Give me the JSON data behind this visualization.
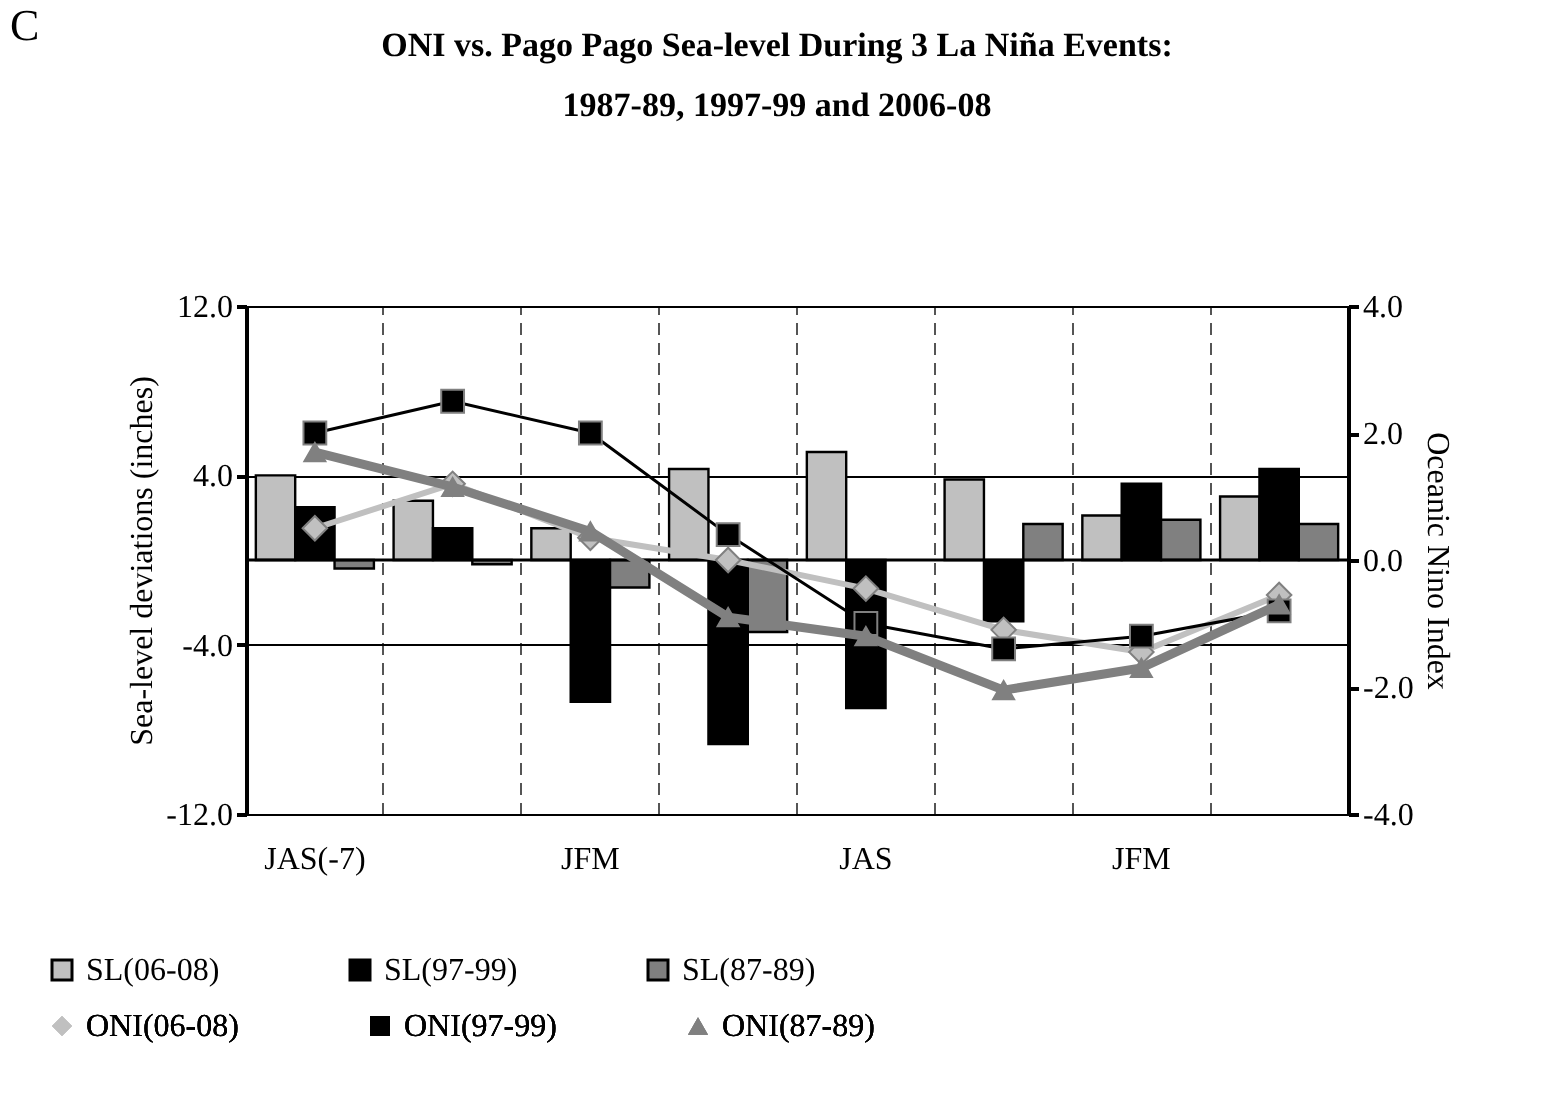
{
  "chart_data": {
    "type": "bar",
    "title": [
      "ONI vs. Pago Pago Sea-level During 3 La Niña Events:",
      "1987-89, 1997-99 and 2006-08"
    ],
    "annotations": [
      "C"
    ],
    "ylabel": "Sea-level deviations (inches)",
    "y2label": "Oceanic Nino Index",
    "categories": [
      "JAS(-7)",
      null,
      "JFM",
      null,
      "JAS",
      null,
      "JFM",
      null
    ],
    "series": [
      {
        "name": "SL(06-08)",
        "type": "bar",
        "color": "#c0c0c0",
        "values": [
          4.0,
          2.8,
          1.5,
          4.3,
          5.1,
          3.8,
          2.1,
          3.0
        ]
      },
      {
        "name": "SL(97-99)",
        "type": "bar",
        "color": "#000000",
        "values": [
          2.5,
          1.5,
          -6.7,
          -8.7,
          -7.0,
          -2.9,
          3.6,
          4.3
        ]
      },
      {
        "name": "SL(87-89)",
        "type": "bar",
        "color": "#808080",
        "values": [
          -0.4,
          -0.2,
          -1.3,
          -3.4,
          null,
          1.7,
          1.9,
          1.7
        ]
      },
      {
        "name": "ONI(06-08)",
        "type": "line",
        "axis": "y2",
        "color": "#c0c0c0",
        "marker": "diamond",
        "values": [
          0.5,
          1.2,
          0.35,
          0.0,
          -0.45,
          -1.1,
          -1.45,
          -0.55
        ]
      },
      {
        "name": "ONI(97-99)",
        "type": "line",
        "axis": "y2",
        "color": "#000000",
        "marker": "square",
        "values": [
          2.0,
          2.5,
          2.0,
          0.4,
          -1.0,
          -1.4,
          -1.2,
          -0.8
        ]
      },
      {
        "name": "ONI(87-89)",
        "type": "line",
        "axis": "y2",
        "color": "#808080",
        "marker": "triangle",
        "values": [
          1.7,
          1.15,
          0.45,
          -0.9,
          -1.2,
          -2.05,
          -1.7,
          -0.7
        ]
      }
    ],
    "ylim": [
      -12,
      12
    ],
    "yticks": [
      {
        "value": -12,
        "label": "-12.0"
      },
      {
        "value": -4,
        "label": "-4.0"
      },
      {
        "value": 4,
        "label": "4.0"
      },
      {
        "value": 12,
        "label": "12.0"
      }
    ],
    "y2lim": [
      -4,
      4
    ],
    "y2ticks": [
      {
        "value": -4,
        "label": "-4.0"
      },
      {
        "value": -2,
        "label": "-2.0"
      },
      {
        "value": 0,
        "label": "0.0"
      },
      {
        "value": 2,
        "label": "2.0"
      },
      {
        "value": 4,
        "label": "4.0"
      }
    ],
    "ref_lines": [
      {
        "axis": "y",
        "value": 0,
        "color": "#000000"
      }
    ],
    "grid": true,
    "legend": "bottom"
  }
}
